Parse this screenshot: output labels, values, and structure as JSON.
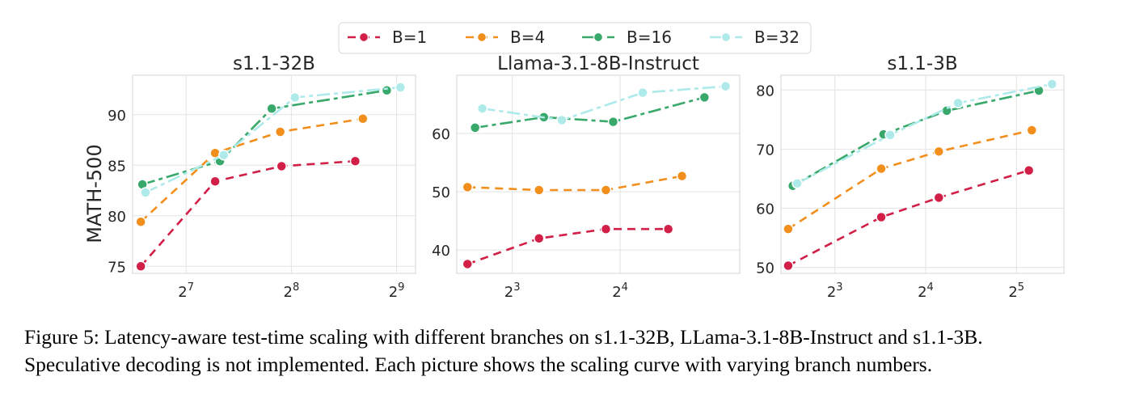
{
  "legend": [
    {
      "label": "B=1",
      "color": "#d21f47",
      "marker": "circle",
      "dash": "10,7"
    },
    {
      "label": "B=4",
      "color": "#f28e1c",
      "marker": "circle",
      "dash": "10,7"
    },
    {
      "label": "B=16",
      "color": "#39a96b",
      "marker": "circle",
      "dash": "16,5,5,5"
    },
    {
      "label": "B=32",
      "color": "#aeeaea",
      "marker": "circle",
      "dash": "16,5,5,5"
    }
  ],
  "chart_data": [
    {
      "type": "line",
      "title": "s1.1-32B",
      "ylabel": "MATH-500",
      "xlabel": "",
      "xscale": "log2",
      "xlim": [
        90,
        580
      ],
      "ylim": [
        74.3,
        93.9
      ],
      "xticks": [
        {
          "value": 128,
          "base": "2",
          "exp": "7"
        },
        {
          "value": 256,
          "base": "2",
          "exp": "8"
        },
        {
          "value": 512,
          "base": "2",
          "exp": "9"
        }
      ],
      "yticks": [
        75,
        80,
        85,
        90
      ],
      "grid": true,
      "series": [
        {
          "name": "B=1",
          "x": [
            95,
            155,
            240,
            390
          ],
          "y": [
            75.0,
            83.4,
            84.9,
            85.4
          ]
        },
        {
          "name": "B=4",
          "x": [
            95,
            155,
            238,
            410
          ],
          "y": [
            79.4,
            86.2,
            88.3,
            89.6
          ]
        },
        {
          "name": "B=16",
          "x": [
            96,
            160,
            225,
            480
          ],
          "y": [
            83.1,
            85.4,
            90.6,
            92.4
          ]
        },
        {
          "name": "B=32",
          "x": [
            98,
            164,
            262,
            525
          ],
          "y": [
            82.3,
            86.0,
            91.7,
            92.7
          ]
        }
      ]
    },
    {
      "type": "line",
      "title": "Llama-3.1-8B-Instruct",
      "ylabel": "",
      "xlabel": "",
      "xscale": "log2",
      "xlim": [
        5.6,
        34.5
      ],
      "ylim": [
        36.0,
        70.0
      ],
      "xticks": [
        {
          "value": 8,
          "base": "2",
          "exp": "3"
        },
        {
          "value": 16,
          "base": "2",
          "exp": "4"
        }
      ],
      "yticks": [
        40,
        50,
        60
      ],
      "grid": true,
      "series": [
        {
          "name": "B=1",
          "x": [
            6.0,
            9.5,
            14.6,
            21.8
          ],
          "y": [
            37.6,
            42.0,
            43.6,
            43.6
          ]
        },
        {
          "name": "B=4",
          "x": [
            6.0,
            9.5,
            14.6,
            23.8
          ],
          "y": [
            50.8,
            50.3,
            50.3,
            52.7
          ]
        },
        {
          "name": "B=16",
          "x": [
            6.3,
            9.8,
            15.3,
            27.5
          ],
          "y": [
            61.0,
            62.8,
            62.0,
            66.2
          ]
        },
        {
          "name": "B=32",
          "x": [
            6.6,
            11.0,
            18.5,
            31.5
          ],
          "y": [
            64.3,
            62.3,
            67.0,
            68.1
          ]
        }
      ]
    },
    {
      "type": "line",
      "title": "s1.1-3B",
      "ylabel": "",
      "xlabel": "",
      "xscale": "log2",
      "xlim": [
        5.3,
        46
      ],
      "ylim": [
        49.0,
        82.5
      ],
      "xticks": [
        {
          "value": 8,
          "base": "2",
          "exp": "3"
        },
        {
          "value": 16,
          "base": "2",
          "exp": "4"
        },
        {
          "value": 32,
          "base": "2",
          "exp": "5"
        }
      ],
      "yticks": [
        50,
        60,
        70,
        80
      ],
      "grid": true,
      "series": [
        {
          "name": "B=1",
          "x": [
            5.6,
            11.4,
            17.7,
            35.2
          ],
          "y": [
            50.3,
            58.5,
            61.8,
            66.4
          ]
        },
        {
          "name": "B=4",
          "x": [
            5.6,
            11.4,
            17.7,
            36.0
          ],
          "y": [
            56.5,
            66.7,
            69.6,
            73.2
          ]
        },
        {
          "name": "B=16",
          "x": [
            5.8,
            11.6,
            18.8,
            38.0
          ],
          "y": [
            63.8,
            72.5,
            76.5,
            79.9
          ]
        },
        {
          "name": "B=32",
          "x": [
            6.0,
            12.2,
            20.5,
            42.0
          ],
          "y": [
            64.2,
            72.4,
            77.8,
            81.0
          ]
        }
      ]
    }
  ],
  "caption": {
    "line1": "Figure 5: Latency-aware test-time scaling with different branches on s1.1-32B, LLama-3.1-8B-Instruct and s1.1-3B.",
    "line2": "Speculative decoding is not implemented. Each picture shows the scaling curve with varying branch numbers."
  }
}
